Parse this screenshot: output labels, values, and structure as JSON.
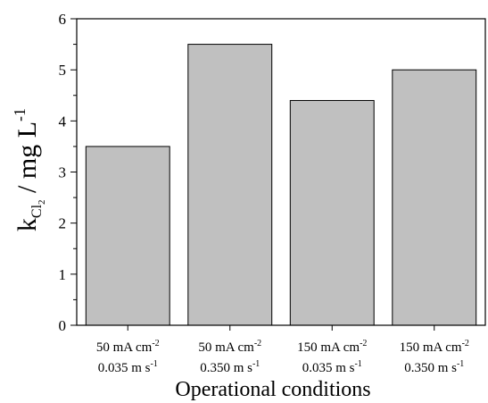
{
  "chart_data": {
    "type": "bar",
    "categories": [
      {
        "line1": "50 mA cm",
        "line1_sup": "-2",
        "line2": "0.035 m s",
        "line2_sup": "-1"
      },
      {
        "line1": "50 mA cm",
        "line1_sup": "-2",
        "line2": "0.350 m s",
        "line2_sup": "-1"
      },
      {
        "line1": "150 mA cm",
        "line1_sup": "-2",
        "line2": "0.035 m s",
        "line2_sup": "-1"
      },
      {
        "line1": "150 mA cm",
        "line1_sup": "-2",
        "line2": "0.350 m s",
        "line2_sup": "-1"
      }
    ],
    "values": [
      3.5,
      5.5,
      4.4,
      5.0
    ],
    "xlabel": "Operational conditions",
    "ylabel": {
      "base": "k",
      "sub": "Cl",
      "subsub": "2",
      "rest": " / mg L",
      "sup": "-1"
    },
    "ylim": [
      0,
      6
    ],
    "yticks": [
      "0",
      "1",
      "2",
      "3",
      "4",
      "5",
      "6"
    ],
    "bar_color": "#c0c0c0",
    "grid": false
  }
}
